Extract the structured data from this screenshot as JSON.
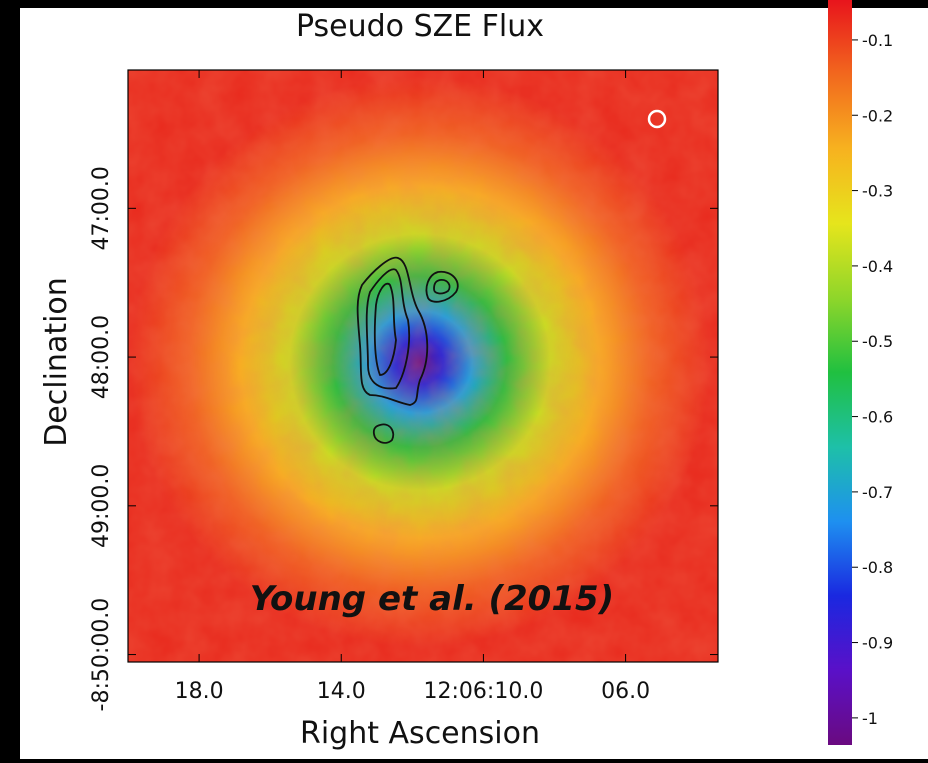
{
  "chart_data": {
    "type": "image-map",
    "title": "Pseudo SZE Flux",
    "x_label": "Right Ascension",
    "y_label": "Declination",
    "annotation": "Young et al. (2015)",
    "xlim": [
      20.0,
      3.4
    ],
    "xticks": [
      {
        "value": 18,
        "label": "18.0"
      },
      {
        "value": 14,
        "label": "14.0"
      },
      {
        "value": 10,
        "label": "12:06:10.0"
      },
      {
        "value": 6,
        "label": "06.0"
      }
    ],
    "ylim": [
      46.07,
      50.05
    ],
    "yticks": [
      {
        "value": 47,
        "label": "47:00.0"
      },
      {
        "value": 48,
        "label": "48:00.0"
      },
      {
        "value": 49,
        "label": "49:00.0"
      },
      {
        "value": 50,
        "label": "-8:50:00.0"
      }
    ],
    "colorbar": {
      "lim": [
        -0.047,
        -1.036
      ],
      "ticks": [
        -0.1,
        -0.2,
        -0.3,
        -0.4,
        -0.5,
        -0.6,
        -0.7,
        -0.8,
        -0.9,
        -1
      ],
      "colors": [
        "#e8141c",
        "#f2681e",
        "#f7b21f",
        "#e6e51c",
        "#8fd62a",
        "#20c040",
        "#1ec0a8",
        "#1e90f0",
        "#1a28e0",
        "#5a10c8",
        "#6a0a80"
      ]
    }
  }
}
